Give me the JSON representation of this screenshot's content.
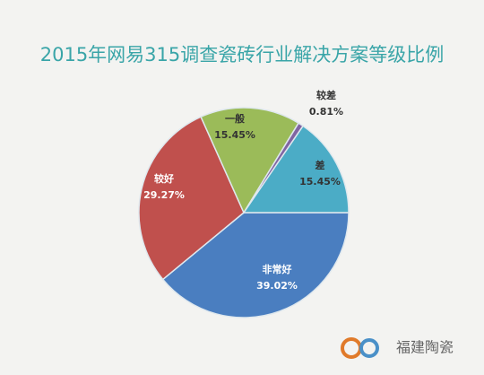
{
  "chart_data": {
    "type": "pie",
    "title": "2015年网易315调查瓷砖行业解决方案等级比例",
    "categories": [
      "非常好",
      "较好",
      "一般",
      "较差",
      "差"
    ],
    "values": [
      39.02,
      29.27,
      15.45,
      0.81,
      15.45
    ],
    "value_labels": [
      "39.02%",
      "29.27%",
      "15.45%",
      "0.81%",
      "15.45%"
    ],
    "colors": [
      "#4a7ec0",
      "#c0504d",
      "#9bbb59",
      "#8064a2",
      "#4bacc6"
    ]
  },
  "watermark": "福建陶瓷"
}
